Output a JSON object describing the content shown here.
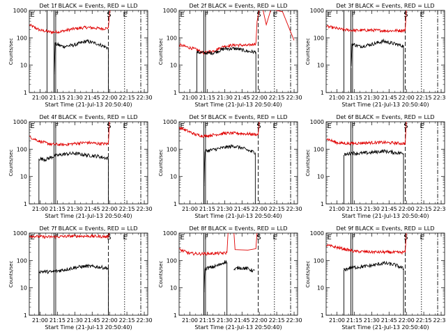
{
  "chart_data": {
    "type": "line",
    "layout": "3x3 grid of time-series panels",
    "x_axis": {
      "label": "Start Time (21-Jul-13 20:50:40)",
      "tick_labels": [
        "21:00",
        "21:15",
        "21:30",
        "21:45",
        "22:00",
        "22:15",
        "22:30"
      ],
      "tick_minutes": [
        0,
        15,
        30,
        45,
        60,
        75,
        90
      ],
      "range_minutes_after_2100": [
        -9.33,
        93
      ]
    },
    "y_axis": {
      "label": "Counts/sec",
      "scale": "log",
      "range": [
        1,
        1000
      ],
      "tick_labels": [
        "1",
        "10",
        "100",
        "1000"
      ]
    },
    "series_colors": {
      "black": "#000000",
      "red": "#e00000"
    },
    "shared_markers": [
      {
        "type": "solid",
        "minute": 12
      },
      {
        "type": "solid",
        "minute": 13.5
      },
      {
        "type": "dashed",
        "minute": 59
      },
      {
        "type": "dotted",
        "minute": 73
      },
      {
        "type": "dashdot",
        "minute": 87
      }
    ],
    "marker_letters": [
      "E",
      "F",
      "S",
      "E"
    ],
    "panels": [
      {
        "title": "Det 1f BLACK = Events, RED = LLD",
        "black": {
          "start": 12.2,
          "end": 59,
          "pts": [
            [
              12.2,
              5
            ],
            [
              13,
              60
            ],
            [
              20,
              48
            ],
            [
              30,
              55
            ],
            [
              40,
              75
            ],
            [
              50,
              60
            ],
            [
              57,
              45
            ],
            [
              59,
              42
            ]
          ]
        },
        "red": {
          "start": -9,
          "end": 59,
          "pts": [
            [
              -9,
              290
            ],
            [
              0,
              190
            ],
            [
              10,
              160
            ],
            [
              18,
              170
            ],
            [
              28,
              210
            ],
            [
              40,
              240
            ],
            [
              55,
              215
            ],
            [
              59,
              230
            ]
          ]
        },
        "red_tail": [
          [
            59,
            230
          ],
          [
            60,
            800
          ],
          [
            61,
            1200
          ]
        ],
        "markers_extra": [
          {
            "type": "solid",
            "minute": 6
          }
        ]
      },
      {
        "title": "Det 2f BLACK = Events, RED = LLD",
        "black": {
          "start": 6,
          "end": 57,
          "pts": [
            [
              6,
              30
            ],
            [
              12,
              28
            ],
            [
              20,
              28
            ],
            [
              30,
              40
            ],
            [
              40,
              40
            ],
            [
              50,
              32
            ],
            [
              57,
              30
            ]
          ]
        },
        "red": {
          "start": -9,
          "end": 57,
          "pts": [
            [
              -9,
              55
            ],
            [
              5,
              38
            ],
            [
              12,
              28
            ],
            [
              20,
              33
            ],
            [
              30,
              50
            ],
            [
              40,
              55
            ],
            [
              50,
              52
            ],
            [
              57,
              62
            ]
          ]
        },
        "red_tail": [
          [
            57,
            62
          ],
          [
            58,
            400
          ],
          [
            60,
            1100
          ],
          [
            63,
            1100
          ],
          [
            66,
            300
          ],
          [
            70,
            1100
          ],
          [
            80,
            900
          ],
          [
            90,
            80
          ]
        ],
        "markers_extra": []
      },
      {
        "title": "Det 3f BLACK = Events, RED = LLD",
        "black": {
          "start": 12.2,
          "end": 57.5,
          "pts": [
            [
              12.2,
              8
            ],
            [
              13,
              60
            ],
            [
              20,
              48
            ],
            [
              30,
              58
            ],
            [
              40,
              75
            ],
            [
              50,
              60
            ],
            [
              57.5,
              50
            ]
          ]
        },
        "red": {
          "start": -9,
          "end": 59,
          "pts": [
            [
              -9,
              260
            ],
            [
              5,
              200
            ],
            [
              15,
              185
            ],
            [
              30,
              190
            ],
            [
              45,
              180
            ],
            [
              55,
              185
            ],
            [
              59,
              190
            ]
          ]
        },
        "red_tail": [
          [
            59,
            190
          ],
          [
            60,
            1100
          ]
        ],
        "markers_extra": [
          {
            "type": "solid",
            "minute": 6
          }
        ]
      },
      {
        "title": "Det 4f BLACK = Events, RED = LLD",
        "black": {
          "start": -1,
          "end": 59,
          "pts": [
            [
              -1,
              45
            ],
            [
              5,
              42
            ],
            [
              12,
              55
            ],
            [
              20,
              65
            ],
            [
              30,
              70
            ],
            [
              40,
              60
            ],
            [
              50,
              55
            ],
            [
              59,
              45
            ]
          ]
        },
        "red": {
          "start": -9,
          "end": 59,
          "pts": [
            [
              -9,
              280
            ],
            [
              0,
              190
            ],
            [
              10,
              150
            ],
            [
              20,
              145
            ],
            [
              30,
              160
            ],
            [
              40,
              175
            ],
            [
              50,
              160
            ],
            [
              59,
              155
            ]
          ]
        },
        "red_tail": [
          [
            59,
            155
          ],
          [
            60,
            1100
          ]
        ],
        "markers_extra": []
      },
      {
        "title": "Det 5f BLACK = Events, RED = LLD",
        "black": {
          "start": 12.2,
          "end": 56.5,
          "pts": [
            [
              12.2,
              5
            ],
            [
              13,
              85
            ],
            [
              20,
              95
            ],
            [
              30,
              115
            ],
            [
              38,
              130
            ],
            [
              45,
              110
            ],
            [
              52,
              85
            ],
            [
              56.5,
              75
            ]
          ]
        },
        "red": {
          "start": -9,
          "end": 59,
          "pts": [
            [
              -9,
              620
            ],
            [
              5,
              340
            ],
            [
              12,
              300
            ],
            [
              20,
              330
            ],
            [
              30,
              380
            ],
            [
              40,
              380
            ],
            [
              50,
              360
            ],
            [
              59,
              340
            ]
          ]
        },
        "red_tail": [
          [
            59,
            340
          ],
          [
            60,
            1100
          ]
        ],
        "markers_extra": []
      },
      {
        "title": "Det 6f BLACK = Events, RED = LLD",
        "black": {
          "start": 6,
          "end": 57.5,
          "pts": [
            [
              6,
              60
            ],
            [
              12,
              72
            ],
            [
              20,
              70
            ],
            [
              30,
              75
            ],
            [
              40,
              85
            ],
            [
              50,
              75
            ],
            [
              57.5,
              70
            ]
          ]
        },
        "red": {
          "start": -9,
          "end": 59,
          "pts": [
            [
              -9,
              240
            ],
            [
              0,
              170
            ],
            [
              10,
              160
            ],
            [
              25,
              170
            ],
            [
              40,
              175
            ],
            [
              52,
              165
            ],
            [
              59,
              160
            ]
          ]
        },
        "red_tail": [
          [
            59,
            160
          ],
          [
            60,
            1100
          ]
        ],
        "markers_extra": []
      },
      {
        "title": "Det 7f BLACK = Events, RED = LLD",
        "black": {
          "start": -1,
          "end": 59,
          "pts": [
            [
              -1,
              40
            ],
            [
              10,
              38
            ],
            [
              20,
              45
            ],
            [
              30,
              55
            ],
            [
              40,
              62
            ],
            [
              50,
              58
            ],
            [
              59,
              52
            ]
          ]
        },
        "red": {
          "start": -9,
          "end": 59,
          "pts": [
            [
              -9,
              790
            ],
            [
              5,
              720
            ],
            [
              15,
              740
            ],
            [
              30,
              780
            ],
            [
              45,
              770
            ],
            [
              59,
              730
            ]
          ]
        },
        "red_tail": [
          [
            59,
            730
          ],
          [
            60,
            1100
          ]
        ],
        "markers_extra": [
          {
            "type": "solid",
            "minute": -1
          }
        ]
      },
      {
        "title": "Det 8f BLACK = Events, RED = LLD",
        "black": {
          "start": 12.2,
          "end": 32,
          "pts": [
            [
              12.2,
              8
            ],
            [
              13,
              50
            ],
            [
              20,
              58
            ],
            [
              26,
              70
            ],
            [
              30,
              90
            ],
            [
              32,
              85
            ]
          ]
        },
        "black2": {
          "start": 38,
          "end": 56,
          "pts": [
            [
              38,
              45
            ],
            [
              42,
              55
            ],
            [
              50,
              50
            ],
            [
              56,
              40
            ]
          ]
        },
        "red": {
          "start": -9,
          "end": 32,
          "pts": [
            [
              -9,
              250
            ],
            [
              0,
              180
            ],
            [
              10,
              175
            ],
            [
              20,
              180
            ],
            [
              30,
              185
            ],
            [
              32,
              190
            ]
          ]
        },
        "red_tail": [
          [
            32,
            190
          ],
          [
            33,
            1100
          ],
          [
            38,
            1100
          ],
          [
            39,
            250
          ],
          [
            50,
            240
          ],
          [
            57,
            270
          ],
          [
            58,
            1100
          ]
        ],
        "markers_extra": []
      },
      {
        "title": "Det 9f BLACK = Events, RED = LLD",
        "black": {
          "start": 6,
          "end": 57.5,
          "pts": [
            [
              6,
              45
            ],
            [
              12,
              55
            ],
            [
              20,
              58
            ],
            [
              30,
              65
            ],
            [
              40,
              80
            ],
            [
              50,
              70
            ],
            [
              57.5,
              50
            ]
          ]
        },
        "red": {
          "start": -9,
          "end": 59,
          "pts": [
            [
              -9,
              360
            ],
            [
              5,
              270
            ],
            [
              15,
              215
            ],
            [
              30,
              205
            ],
            [
              45,
              200
            ],
            [
              55,
              195
            ],
            [
              59,
              205
            ]
          ]
        },
        "red_tail": [
          [
            59,
            205
          ],
          [
            60,
            1100
          ]
        ],
        "markers_extra": []
      }
    ]
  }
}
